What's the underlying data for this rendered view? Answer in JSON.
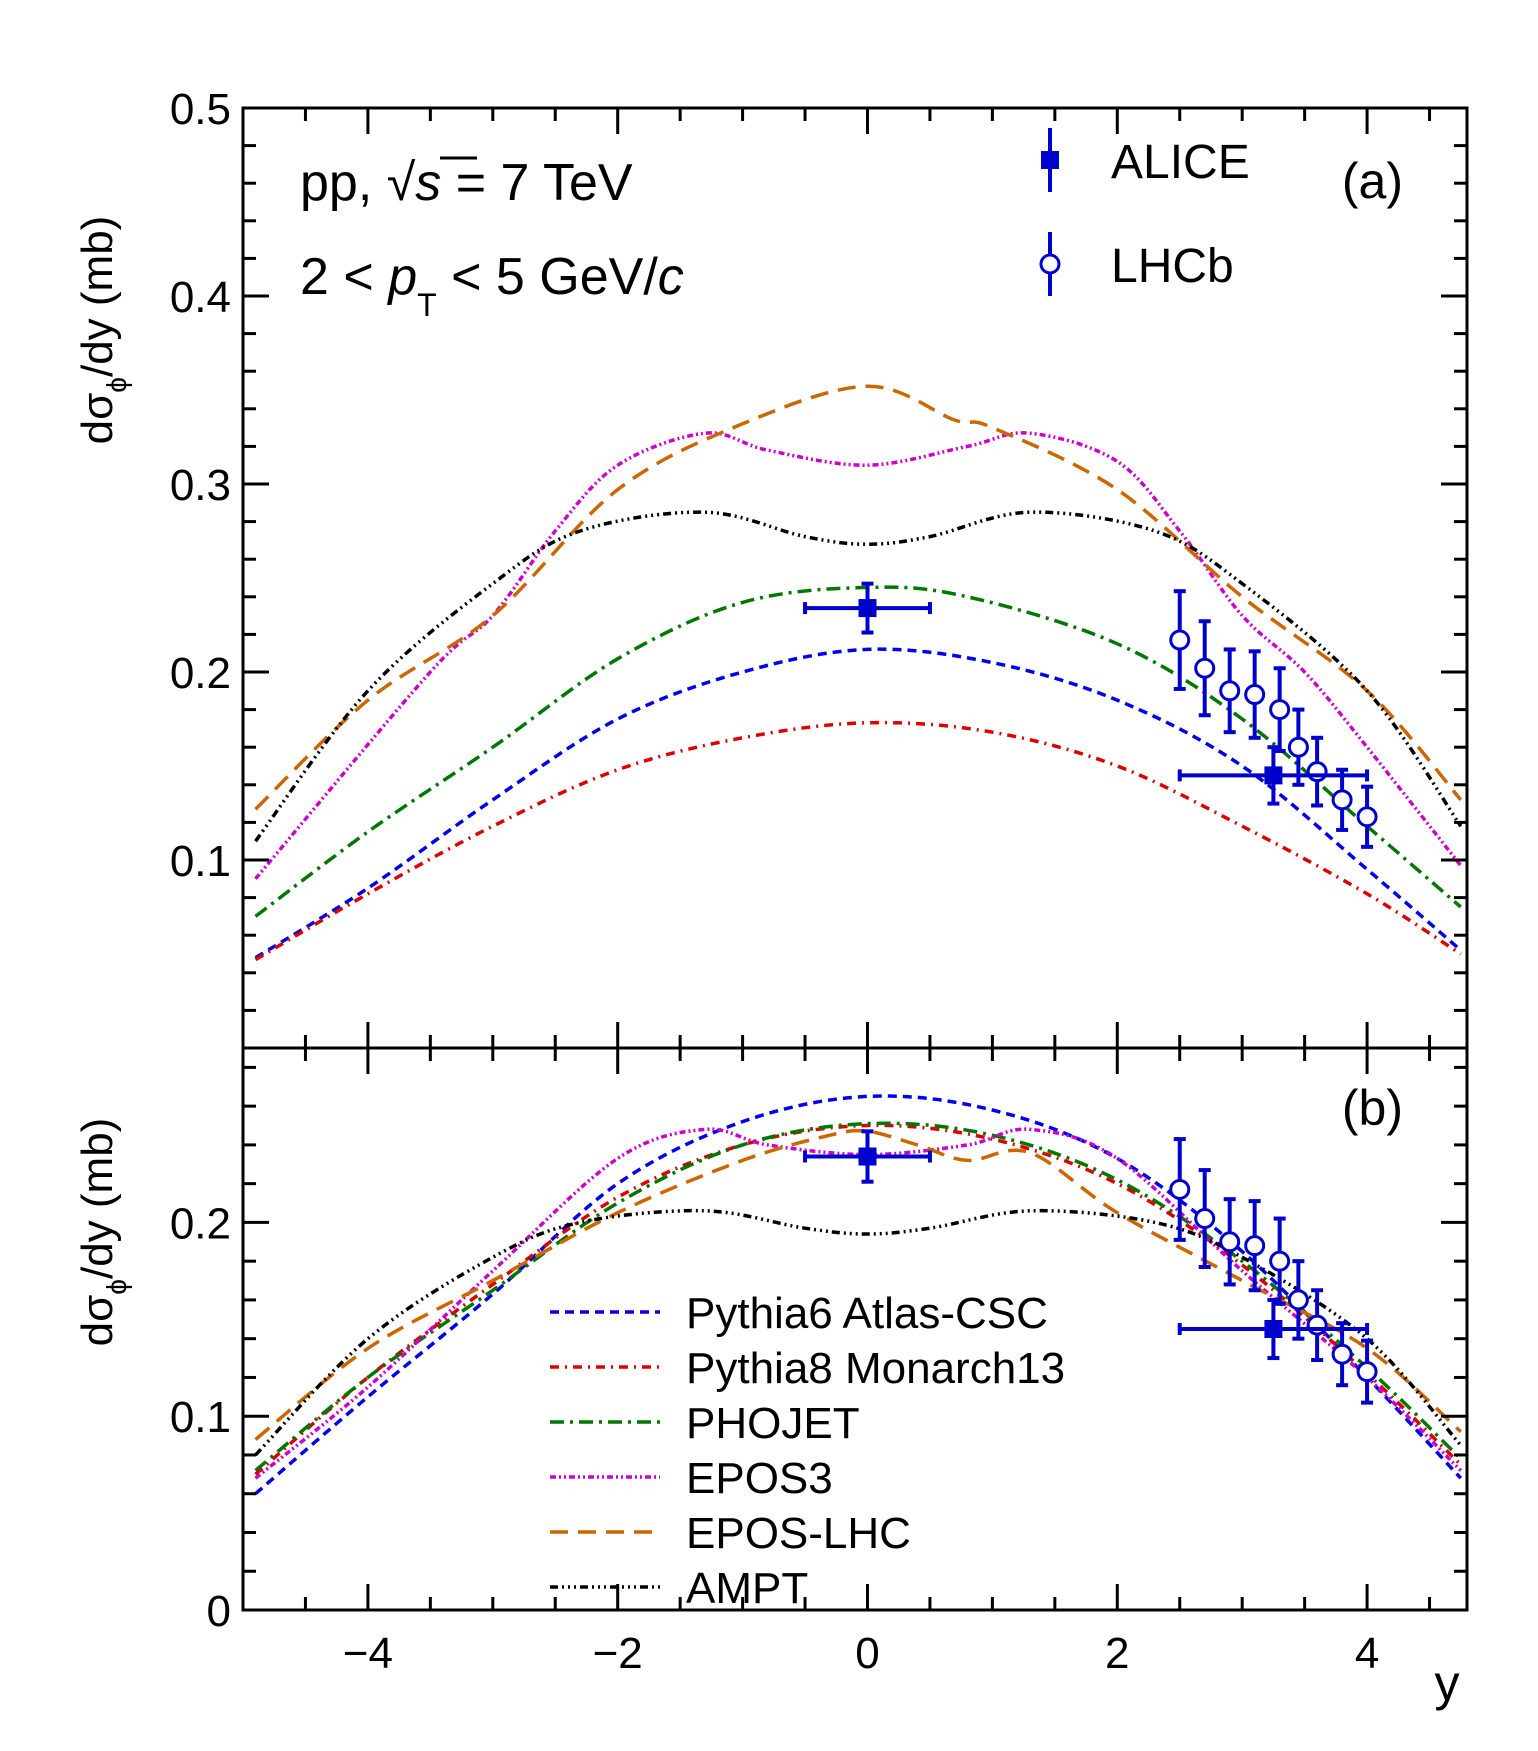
{
  "chart_data": [
    {
      "panel": "(a)",
      "type": "line",
      "ylabel": {
        "pre": "dσ",
        "sub": "ϕ",
        "post": "/dy (mb)"
      },
      "xlabel": "y",
      "xlim": [
        -5,
        4.8
      ],
      "ylim": [
        0,
        0.5
      ],
      "x_ticks": [
        "−4",
        "−2",
        "0",
        "2",
        "4"
      ],
      "y_ticks": [
        "0.1",
        "0.2",
        "0.3",
        "0.4",
        "0.5"
      ],
      "annotation": {
        "line1_pre": "pp, ",
        "sqrt": "√",
        "s": "s",
        "line1_post": " = 7 TeV",
        "line2_pre": "2 < ",
        "p": "p",
        "sub": "T",
        "line2_post": " < 5 GeV/",
        "c": "c"
      },
      "legend": [
        {
          "label": "ALICE",
          "marker": "square-filled",
          "color": "#0000cc"
        },
        {
          "label": "LHCb",
          "marker": "circle-open",
          "color": "#0000cc"
        }
      ],
      "series": [
        {
          "name": "Pythia6 Atlas-CSC",
          "color": "#0000ee",
          "dash": "blue",
          "x": [
            -4.9,
            -4,
            -3,
            -2,
            -1,
            0,
            1,
            2,
            3,
            4,
            4.75
          ],
          "y": [
            0.048,
            0.085,
            0.132,
            0.175,
            0.2,
            0.212,
            0.205,
            0.185,
            0.15,
            0.095,
            0.052
          ]
        },
        {
          "name": "Pythia8 Monarch13",
          "color": "#dd0000",
          "dash": "red",
          "x": [
            -4.9,
            -4,
            -3,
            -2,
            -1,
            0,
            1,
            2,
            3,
            4,
            4.75
          ],
          "y": [
            0.047,
            0.082,
            0.118,
            0.148,
            0.165,
            0.173,
            0.168,
            0.15,
            0.118,
            0.082,
            0.05
          ]
        },
        {
          "name": "PHOJET",
          "color": "#007700",
          "dash": "green",
          "x": [
            -4.9,
            -4,
            -3,
            -2,
            -1,
            0,
            0.8,
            2,
            3,
            4,
            4.75
          ],
          "y": [
            0.07,
            0.115,
            0.16,
            0.207,
            0.237,
            0.245,
            0.24,
            0.215,
            0.175,
            0.118,
            0.075
          ]
        },
        {
          "name": "EPOS3",
          "color": "#cc00cc",
          "dash": "magenta",
          "x": [
            -4.9,
            -3.5,
            -3,
            -2.5,
            -2,
            -1.3,
            -0.8,
            0,
            0.8,
            1.3,
            2,
            2.5,
            3,
            3.5,
            4,
            4.75
          ],
          "y": [
            0.09,
            0.2,
            0.23,
            0.275,
            0.31,
            0.327,
            0.318,
            0.31,
            0.32,
            0.327,
            0.312,
            0.275,
            0.23,
            0.2,
            0.16,
            0.097
          ]
        },
        {
          "name": "EPOS-LHC",
          "color": "#cc6600",
          "dash": "orange",
          "x": [
            -4.9,
            -4,
            -3,
            -2,
            -1,
            0,
            0.7,
            1,
            2,
            3,
            4,
            4.75
          ],
          "y": [
            0.127,
            0.185,
            0.23,
            0.297,
            0.332,
            0.352,
            0.334,
            0.33,
            0.297,
            0.24,
            0.19,
            0.132
          ]
        },
        {
          "name": "AMPT",
          "color": "#000000",
          "dash": "black",
          "x": [
            -4.9,
            -4,
            -3,
            -2.3,
            -1.3,
            -0.5,
            0,
            0.5,
            1.3,
            2.3,
            3,
            4,
            4.75
          ],
          "y": [
            0.11,
            0.19,
            0.247,
            0.275,
            0.285,
            0.272,
            0.268,
            0.272,
            0.285,
            0.275,
            0.247,
            0.19,
            0.118
          ]
        }
      ],
      "data": {
        "ALICE": [
          {
            "x": 0,
            "y": 0.234,
            "xerr": 0.5,
            "yerr": 0.013
          },
          {
            "x": 3.25,
            "y": 0.145,
            "xerr": 0.75,
            "yerr": 0.015
          }
        ],
        "LHCb": [
          {
            "x": 2.5,
            "y": 0.217,
            "yerr": 0.026
          },
          {
            "x": 2.7,
            "y": 0.202,
            "yerr": 0.025
          },
          {
            "x": 2.9,
            "y": 0.19,
            "yerr": 0.022
          },
          {
            "x": 3.1,
            "y": 0.188,
            "yerr": 0.023
          },
          {
            "x": 3.3,
            "y": 0.18,
            "yerr": 0.022
          },
          {
            "x": 3.45,
            "y": 0.16,
            "yerr": 0.02
          },
          {
            "x": 3.6,
            "y": 0.147,
            "yerr": 0.018
          },
          {
            "x": 3.8,
            "y": 0.132,
            "yerr": 0.016
          },
          {
            "x": 4.0,
            "y": 0.123,
            "yerr": 0.016
          }
        ]
      }
    },
    {
      "panel": "(b)",
      "type": "line",
      "ylabel": {
        "pre": "dσ",
        "sub": "ϕ",
        "post": "/dy (mb)"
      },
      "xlabel": "y",
      "xlim": [
        -5,
        4.8
      ],
      "ylim": [
        0,
        0.29
      ],
      "x_ticks": [
        "−4",
        "−2",
        "0",
        "2",
        "4"
      ],
      "y_ticks": [
        "0",
        "0.1",
        "0.2"
      ],
      "legend": [
        {
          "label": "Pythia6 Atlas-CSC",
          "color": "#0000ee",
          "dash": "blue"
        },
        {
          "label": "Pythia8 Monarch13",
          "color": "#dd0000",
          "dash": "red"
        },
        {
          "label": "PHOJET",
          "color": "#007700",
          "dash": "green"
        },
        {
          "label": "EPOS3",
          "color": "#cc00cc",
          "dash": "magenta"
        },
        {
          "label": "EPOS-LHC",
          "color": "#cc6600",
          "dash": "orange"
        },
        {
          "label": "AMPT",
          "color": "#000000",
          "dash": "black"
        }
      ],
      "series": [
        {
          "name": "Pythia6 Atlas-CSC",
          "color": "#0000ee",
          "dash": "blue",
          "x": [
            -4.9,
            -4,
            -3,
            -2,
            -1,
            0,
            1,
            2,
            3,
            4,
            4.75
          ],
          "y": [
            0.06,
            0.11,
            0.163,
            0.22,
            0.252,
            0.265,
            0.258,
            0.233,
            0.185,
            0.12,
            0.068
          ]
        },
        {
          "name": "Pythia8 Monarch13",
          "color": "#dd0000",
          "dash": "red",
          "x": [
            -4.9,
            -4,
            -3,
            -2,
            -1,
            0,
            1,
            2,
            3,
            4,
            4.75
          ],
          "y": [
            0.07,
            0.12,
            0.168,
            0.213,
            0.24,
            0.25,
            0.243,
            0.22,
            0.178,
            0.122,
            0.075
          ]
        },
        {
          "name": "PHOJET",
          "color": "#007700",
          "dash": "green",
          "x": [
            -4.9,
            -4,
            -3,
            -2,
            -1,
            0,
            1,
            2,
            3,
            4,
            4.75
          ],
          "y": [
            0.072,
            0.12,
            0.165,
            0.21,
            0.24,
            0.251,
            0.245,
            0.222,
            0.18,
            0.125,
            0.078
          ]
        },
        {
          "name": "EPOS3",
          "color": "#cc00cc",
          "dash": "magenta",
          "x": [
            -4.9,
            -4,
            -3,
            -2,
            -1.3,
            -0.8,
            0,
            0.8,
            1.3,
            2,
            3,
            4,
            4.75
          ],
          "y": [
            0.068,
            0.115,
            0.175,
            0.233,
            0.248,
            0.24,
            0.235,
            0.24,
            0.248,
            0.233,
            0.175,
            0.12,
            0.072
          ]
        },
        {
          "name": "EPOS-LHC",
          "color": "#cc6600",
          "dash": "orange",
          "x": [
            -4.9,
            -4,
            -3,
            -2,
            -1,
            -0.3,
            0,
            0.4,
            0.8,
            1.3,
            2,
            3,
            4,
            4.75
          ],
          "y": [
            0.088,
            0.135,
            0.17,
            0.205,
            0.232,
            0.245,
            0.247,
            0.24,
            0.232,
            0.236,
            0.205,
            0.17,
            0.135,
            0.092
          ]
        },
        {
          "name": "AMPT",
          "color": "#000000",
          "dash": "black",
          "x": [
            -4.9,
            -4,
            -3,
            -2.3,
            -1.3,
            -0.5,
            0,
            0.5,
            1.3,
            2.3,
            3,
            4,
            4.75
          ],
          "y": [
            0.08,
            0.14,
            0.182,
            0.2,
            0.206,
            0.197,
            0.194,
            0.197,
            0.206,
            0.2,
            0.182,
            0.14,
            0.085
          ]
        }
      ],
      "data": {
        "ALICE": [
          {
            "x": 0,
            "y": 0.234,
            "xerr": 0.5,
            "yerr": 0.013
          },
          {
            "x": 3.25,
            "y": 0.145,
            "xerr": 0.75,
            "yerr": 0.015
          }
        ],
        "LHCb": [
          {
            "x": 2.5,
            "y": 0.217,
            "yerr": 0.026
          },
          {
            "x": 2.7,
            "y": 0.202,
            "yerr": 0.025
          },
          {
            "x": 2.9,
            "y": 0.19,
            "yerr": 0.022
          },
          {
            "x": 3.1,
            "y": 0.188,
            "yerr": 0.023
          },
          {
            "x": 3.3,
            "y": 0.18,
            "yerr": 0.022
          },
          {
            "x": 3.45,
            "y": 0.16,
            "yerr": 0.02
          },
          {
            "x": 3.6,
            "y": 0.147,
            "yerr": 0.018
          },
          {
            "x": 3.8,
            "y": 0.132,
            "yerr": 0.016
          },
          {
            "x": 4.0,
            "y": 0.123,
            "yerr": 0.016
          }
        ]
      }
    }
  ]
}
